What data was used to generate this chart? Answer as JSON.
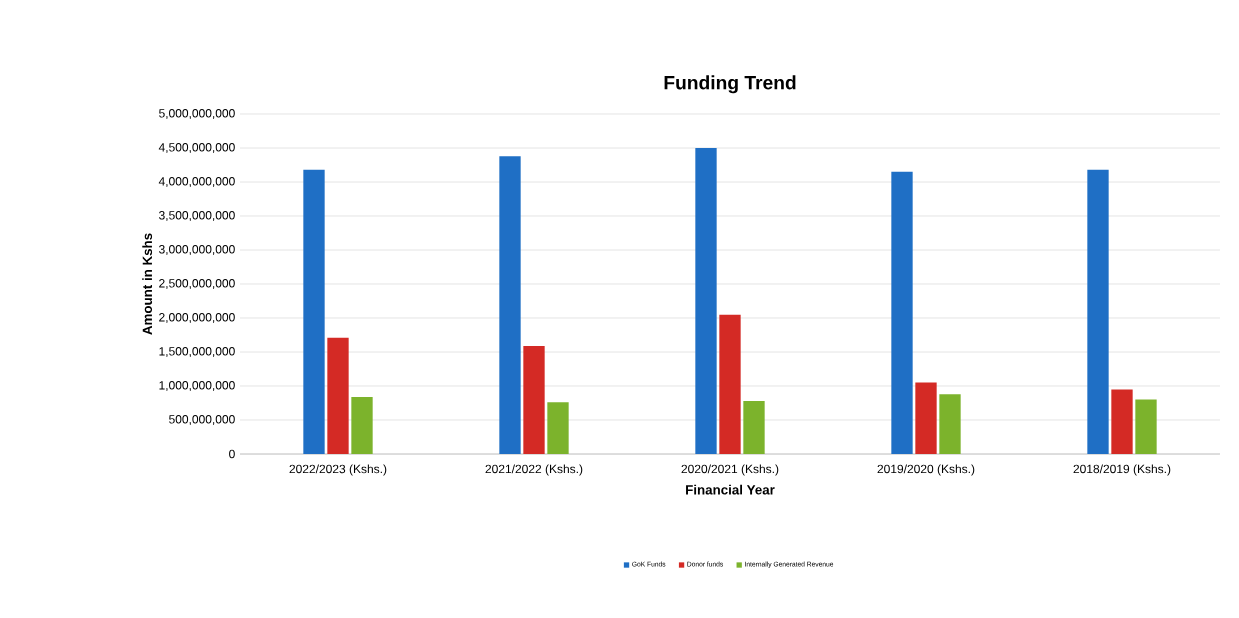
{
  "chart_data": {
    "type": "bar",
    "title": "Funding Trend",
    "xlabel": "Financial Year",
    "ylabel": "Amount in Kshs",
    "categories": [
      "2022/2023 (Kshs.)",
      "2021/2022 (Kshs.)",
      "2020/2021 (Kshs.)",
      "2019/2020 (Kshs.)",
      "2018/2019 (Kshs.)"
    ],
    "series": [
      {
        "name": "GoK Funds",
        "color": "#1f6fc5",
        "values": [
          4180000000,
          4380000000,
          4500000000,
          4150000000,
          4180000000
        ]
      },
      {
        "name": "Donor funds",
        "color": "#d42a25",
        "values": [
          1710000000,
          1590000000,
          2050000000,
          1050000000,
          950000000
        ]
      },
      {
        "name": "Internally Generated Revenue",
        "color": "#7cb32c",
        "values": [
          840000000,
          760000000,
          780000000,
          880000000,
          800000000
        ]
      }
    ],
    "ylim": [
      0,
      5000000000
    ],
    "yticks": [
      {
        "value": 0,
        "label": "0"
      },
      {
        "value": 500000000,
        "label": "500,000,000"
      },
      {
        "value": 1000000000,
        "label": "1,000,000,000"
      },
      {
        "value": 1500000000,
        "label": "1,500,000,000"
      },
      {
        "value": 2000000000,
        "label": "2,000,000,000"
      },
      {
        "value": 2500000000,
        "label": "2,500,000,000"
      },
      {
        "value": 3000000000,
        "label": "3,000,000,000"
      },
      {
        "value": 3500000000,
        "label": "3,500,000,000"
      },
      {
        "value": 4000000000,
        "label": "4,000,000,000"
      },
      {
        "value": 4500000000,
        "label": "4,500,000,000"
      },
      {
        "value": 5000000000,
        "label": "5,000,000,000"
      }
    ],
    "grid": "y",
    "legend": "bottom"
  }
}
